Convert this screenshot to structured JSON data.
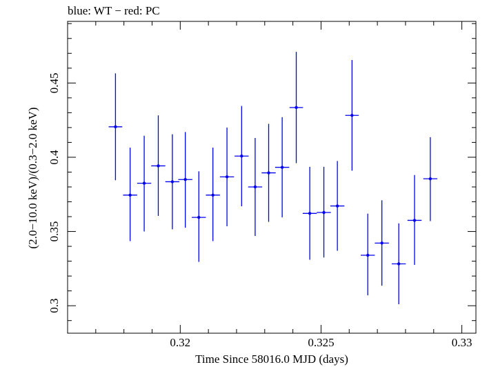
{
  "chart_data": {
    "type": "scatter",
    "title": "blue: WT − red: PC",
    "xlabel": "Time Since 58016.0 MJD (days)",
    "ylabel": "(2.0−10.0 keV)/(0.3−2.0 keV)",
    "xlim": [
      0.316,
      0.3305
    ],
    "ylim": [
      0.2815,
      0.4915
    ],
    "xticks": [
      {
        "value": 0.32,
        "label": "0.32"
      },
      {
        "value": 0.325,
        "label": "0.325"
      },
      {
        "value": 0.33,
        "label": "0.33"
      }
    ],
    "yticks": [
      {
        "value": 0.3,
        "label": "0.3"
      },
      {
        "value": 0.35,
        "label": "0.35"
      },
      {
        "value": 0.4,
        "label": "0.4"
      },
      {
        "value": 0.45,
        "label": "0.45"
      }
    ],
    "series": [
      {
        "color": "#0000ee",
        "points": [
          {
            "x": 0.3177,
            "xerr": 0.00024,
            "y": 0.4205,
            "ylo": 0.3845,
            "yhi": 0.4565
          },
          {
            "x": 0.31822,
            "xerr": 0.00025,
            "y": 0.3745,
            "ylo": 0.3435,
            "yhi": 0.4065
          },
          {
            "x": 0.31872,
            "xerr": 0.00025,
            "y": 0.3825,
            "ylo": 0.35,
            "yhi": 0.4145
          },
          {
            "x": 0.31922,
            "xerr": 0.00025,
            "y": 0.3942,
            "ylo": 0.3605,
            "yhi": 0.4282
          },
          {
            "x": 0.31972,
            "xerr": 0.00025,
            "y": 0.3835,
            "ylo": 0.3515,
            "yhi": 0.4155
          },
          {
            "x": 0.32018,
            "xerr": 0.00025,
            "y": 0.385,
            "ylo": 0.3525,
            "yhi": 0.417
          },
          {
            "x": 0.32066,
            "xerr": 0.00025,
            "y": 0.3595,
            "ylo": 0.3295,
            "yhi": 0.3905
          },
          {
            "x": 0.32116,
            "xerr": 0.00025,
            "y": 0.3745,
            "ylo": 0.3435,
            "yhi": 0.4065
          },
          {
            "x": 0.32166,
            "xerr": 0.00025,
            "y": 0.3868,
            "ylo": 0.3535,
            "yhi": 0.42
          },
          {
            "x": 0.32218,
            "xerr": 0.00025,
            "y": 0.4008,
            "ylo": 0.367,
            "yhi": 0.4345
          },
          {
            "x": 0.32266,
            "xerr": 0.00025,
            "y": 0.38,
            "ylo": 0.347,
            "yhi": 0.413
          },
          {
            "x": 0.32314,
            "xerr": 0.00025,
            "y": 0.3895,
            "ylo": 0.3565,
            "yhi": 0.4225
          },
          {
            "x": 0.32362,
            "xerr": 0.00025,
            "y": 0.3932,
            "ylo": 0.3595,
            "yhi": 0.427
          },
          {
            "x": 0.32412,
            "xerr": 0.00024,
            "y": 0.4335,
            "ylo": 0.396,
            "yhi": 0.471
          },
          {
            "x": 0.3246,
            "xerr": 0.00025,
            "y": 0.3622,
            "ylo": 0.331,
            "yhi": 0.3935
          },
          {
            "x": 0.3251,
            "xerr": 0.00025,
            "y": 0.3628,
            "ylo": 0.3325,
            "yhi": 0.3935
          },
          {
            "x": 0.32558,
            "xerr": 0.00025,
            "y": 0.3672,
            "ylo": 0.337,
            "yhi": 0.3975
          },
          {
            "x": 0.3261,
            "xerr": 0.00024,
            "y": 0.4282,
            "ylo": 0.391,
            "yhi": 0.4655
          },
          {
            "x": 0.32666,
            "xerr": 0.00025,
            "y": 0.334,
            "ylo": 0.307,
            "yhi": 0.362
          },
          {
            "x": 0.32716,
            "xerr": 0.00025,
            "y": 0.3422,
            "ylo": 0.3135,
            "yhi": 0.371
          },
          {
            "x": 0.32776,
            "xerr": 0.00025,
            "y": 0.3282,
            "ylo": 0.301,
            "yhi": 0.3555
          },
          {
            "x": 0.32832,
            "xerr": 0.00025,
            "y": 0.3575,
            "ylo": 0.3275,
            "yhi": 0.388
          },
          {
            "x": 0.32888,
            "xerr": 0.00025,
            "y": 0.3855,
            "ylo": 0.357,
            "yhi": 0.4135
          }
        ]
      }
    ],
    "grid": false
  }
}
